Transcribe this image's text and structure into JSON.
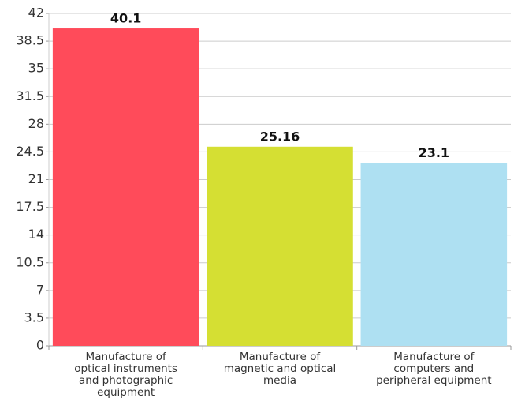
{
  "chart_data": {
    "type": "bar",
    "categories": [
      "Manufacture of optical instruments and photographic equipment",
      "Manufacture of magnetic and optical media",
      "Manufacture of computers and peripheral equipment"
    ],
    "values": [
      40.1,
      25.16,
      23.1
    ],
    "colors": [
      "#ff4b5a",
      "#d5df33",
      "#aee0f2"
    ],
    "ylim": [
      0,
      42
    ],
    "yticks": [
      0,
      3.5,
      7,
      10.5,
      14,
      17.5,
      21,
      24.5,
      28,
      31.5,
      35,
      38.5,
      42
    ],
    "grid": true
  }
}
